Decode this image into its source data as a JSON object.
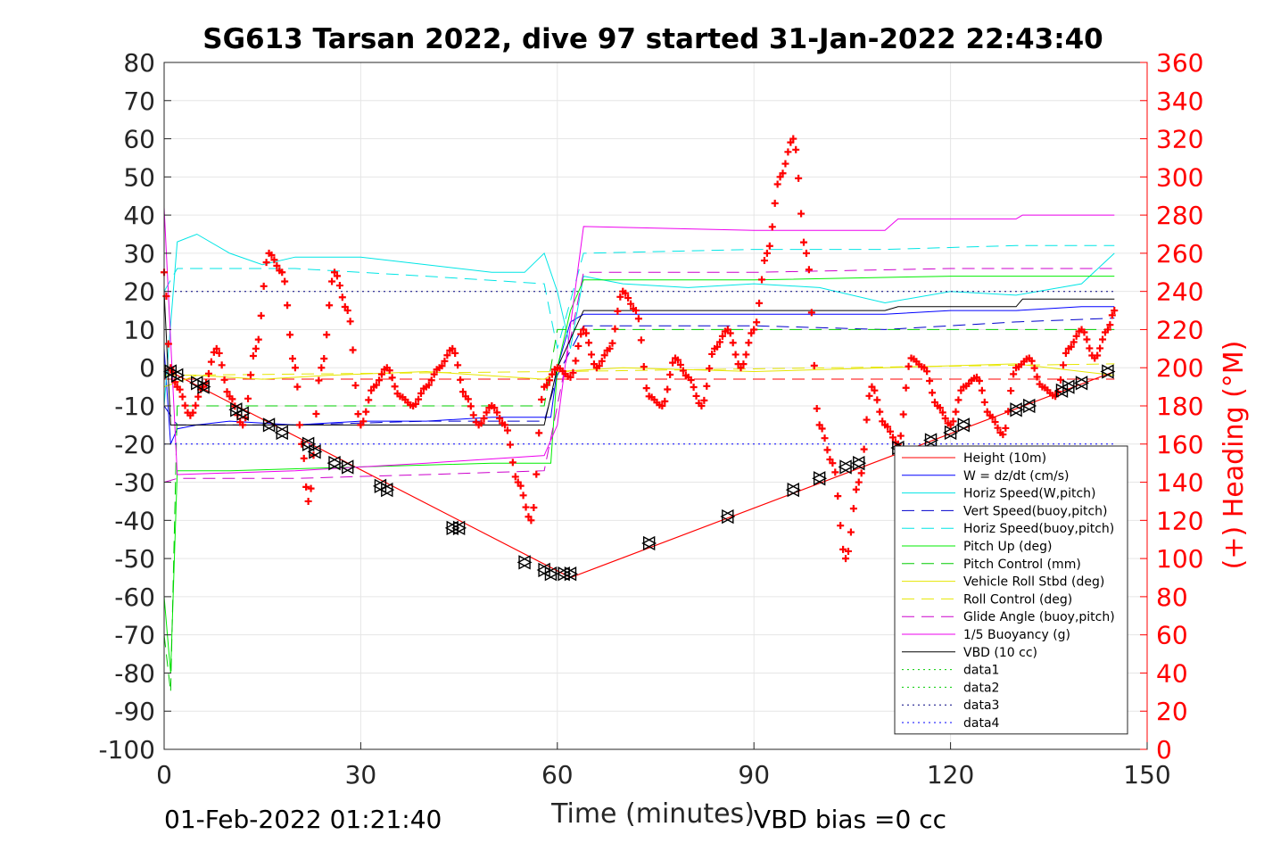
{
  "chart_data": {
    "type": "line",
    "title": "SG613 Tarsan 2022, dive 97 started 31-Jan-2022 22:43:40",
    "xlabel": "Time (minutes)",
    "ylabel": "",
    "y2label": "(+) Heading (°M)",
    "xlim": [
      0,
      150
    ],
    "ylim": [
      -100,
      80
    ],
    "y2lim": [
      0,
      360
    ],
    "x_ticks": [
      "0",
      "30",
      "60",
      "90",
      "120",
      "150"
    ],
    "y_ticks": [
      "80",
      "70",
      "60",
      "50",
      "40",
      "30",
      "20",
      "10",
      "0",
      "-10",
      "-20",
      "-30",
      "-40",
      "-50",
      "-60",
      "-70",
      "-80",
      "-90",
      "-100"
    ],
    "y2_ticks": [
      "360",
      "340",
      "320",
      "300",
      "280",
      "260",
      "240",
      "220",
      "200",
      "180",
      "160",
      "140",
      "120",
      "100",
      "80",
      "60",
      "40",
      "20",
      "0"
    ],
    "grid": true,
    "legend_position": "bottom-right",
    "footer_left": "01-Feb-2022 01:21:40",
    "footer_right": "VBD bias =0 cc",
    "series": [
      {
        "name": "Height (10m)",
        "color": "#ff0000",
        "style": "solid",
        "x": [
          0,
          2,
          62,
          145
        ],
        "y": [
          0,
          -2,
          -55,
          -1
        ]
      },
      {
        "name": "W = dz/dt (cm/s)",
        "color": "#0000ff",
        "style": "solid",
        "x": [
          0,
          1,
          2,
          5,
          10,
          20,
          30,
          40,
          50,
          59,
          60,
          62,
          64,
          70,
          80,
          90,
          100,
          110,
          120,
          130,
          140,
          145
        ],
        "y": [
          5,
          -20,
          -16,
          -15,
          -14,
          -15,
          -14,
          -14,
          -13,
          -13,
          0,
          12,
          14,
          14,
          14,
          14,
          14,
          14,
          15,
          15,
          16,
          16
        ]
      },
      {
        "name": "Horiz Speed(W,pitch)",
        "color": "#00e5e5",
        "style": "solid",
        "x": [
          0,
          2,
          5,
          10,
          15,
          20,
          30,
          40,
          50,
          55,
          58,
          60,
          62,
          64,
          70,
          80,
          90,
          100,
          110,
          120,
          130,
          140,
          145
        ],
        "y": [
          -10,
          33,
          35,
          30,
          27,
          29,
          29,
          27,
          25,
          25,
          30,
          20,
          5,
          24,
          22,
          21,
          22,
          21,
          17,
          20,
          19,
          22,
          30
        ]
      },
      {
        "name": "Vert Speed(buoy,pitch)",
        "color": "#0000cc",
        "style": "dashed",
        "x": [
          0,
          2,
          20,
          40,
          58,
          60,
          64,
          90,
          110,
          130,
          145
        ],
        "y": [
          -10,
          -15,
          -15,
          -14,
          -14,
          -2,
          11,
          11,
          10,
          12,
          13
        ]
      },
      {
        "name": "Horiz Speed(buoy,pitch)",
        "color": "#00e5e5",
        "style": "dashed",
        "x": [
          0,
          2,
          20,
          40,
          58,
          60,
          64,
          90,
          110,
          130,
          145
        ],
        "y": [
          20,
          26,
          26,
          24,
          22,
          5,
          30,
          31,
          31,
          32,
          32
        ]
      },
      {
        "name": "Pitch Up (deg)",
        "color": "#00ee00",
        "style": "solid",
        "x": [
          0,
          1,
          2,
          10,
          30,
          50,
          59,
          60,
          62,
          64,
          90,
          120,
          145
        ],
        "y": [
          -60,
          -80,
          -27,
          -27,
          -26,
          -25,
          -25,
          0,
          15,
          23,
          23,
          24,
          24
        ]
      },
      {
        "name": "Pitch Control (mm)",
        "color": "#00cc00",
        "style": "dashed",
        "x": [
          0,
          1,
          2,
          58,
          60,
          64,
          145
        ],
        "y": [
          -70,
          -85,
          -10,
          -10,
          10,
          10,
          10
        ]
      },
      {
        "name": "Vehicle Roll Stbd (deg)",
        "color": "#e6e600",
        "style": "solid",
        "x": [
          0,
          5,
          15,
          25,
          40,
          58,
          60,
          70,
          90,
          110,
          130,
          145
        ],
        "y": [
          -5,
          -2,
          -3,
          -2,
          -1,
          -3,
          -1,
          0,
          -1,
          0,
          1,
          -2
        ]
      },
      {
        "name": "Roll Control (deg)",
        "color": "#e6e600",
        "style": "dashed",
        "x": [
          0,
          60,
          145
        ],
        "y": [
          -2,
          -1,
          1
        ]
      },
      {
        "name": "Glide Angle (buoy,pitch)",
        "color": "#cc00cc",
        "style": "dashed",
        "x": [
          0,
          2,
          20,
          40,
          58,
          60,
          64,
          90,
          120,
          145
        ],
        "y": [
          -30,
          -29,
          -29,
          -28,
          -27,
          -10,
          25,
          25,
          26,
          26
        ]
      },
      {
        "name": "1/5 Buoyancy (g)",
        "color": "#ee00ee",
        "style": "solid",
        "x": [
          0,
          2,
          20,
          40,
          58,
          60,
          64,
          90,
          110,
          112,
          130,
          131,
          145
        ],
        "y": [
          42,
          -28,
          -27,
          -25,
          -23,
          -15,
          37,
          36,
          36,
          39,
          39,
          40,
          40
        ]
      },
      {
        "name": "VBD (10 cc)",
        "color": "#000000",
        "style": "solid",
        "x": [
          0,
          1,
          2,
          58,
          60,
          64,
          110,
          112,
          130,
          131,
          145
        ],
        "y": [
          20,
          -15,
          -15,
          -15,
          0,
          15,
          15,
          16,
          16,
          18,
          18
        ]
      },
      {
        "name": "data1",
        "color": "#00cc00",
        "style": "dotted",
        "x": [
          0,
          145
        ],
        "y": [
          -100,
          -100
        ]
      },
      {
        "name": "data2",
        "color": "#00cc00",
        "style": "dotted",
        "x": [
          0,
          145
        ],
        "y": [
          -100,
          -100
        ]
      },
      {
        "name": "data3",
        "color": "#000080",
        "style": "dotted",
        "x": [
          0,
          145
        ],
        "y": [
          20,
          20
        ]
      },
      {
        "name": "data4",
        "color": "#0000ff",
        "style": "dotted",
        "x": [
          0,
          145
        ],
        "y": [
          -20,
          -20
        ]
      }
    ],
    "red_line_dashed": {
      "color": "#ff0000",
      "x": [
        0,
        145
      ],
      "y": [
        -3,
        -3
      ]
    },
    "heading": {
      "name": "(+) Heading (°M)",
      "color": "#ff0000",
      "x": [
        0,
        1,
        2,
        4,
        6,
        8,
        10,
        12,
        14,
        16,
        18,
        20,
        21,
        22,
        24,
        26,
        28,
        30,
        32,
        34,
        36,
        38,
        40,
        42,
        44,
        46,
        48,
        50,
        52,
        54,
        56,
        58,
        60,
        62,
        64,
        66,
        68,
        70,
        72,
        74,
        76,
        78,
        80,
        82,
        84,
        86,
        88,
        90,
        92,
        94,
        96,
        98,
        100,
        102,
        104,
        106,
        108,
        110,
        112,
        114,
        116,
        118,
        120,
        122,
        124,
        126,
        128,
        130,
        132,
        134,
        136,
        138,
        140,
        142,
        144,
        145
      ],
      "y": [
        250,
        200,
        190,
        175,
        190,
        210,
        185,
        170,
        210,
        260,
        250,
        200,
        160,
        130,
        200,
        250,
        230,
        170,
        190,
        200,
        185,
        180,
        190,
        200,
        210,
        185,
        170,
        180,
        170,
        140,
        120,
        190,
        200,
        195,
        220,
        200,
        210,
        240,
        230,
        185,
        180,
        205,
        195,
        180,
        210,
        220,
        200,
        220,
        260,
        300,
        320,
        260,
        170,
        150,
        100,
        140,
        190,
        170,
        160,
        205,
        200,
        180,
        170,
        190,
        195,
        175,
        165,
        200,
        205,
        190,
        185,
        210,
        220,
        205,
        220,
        230
      ]
    },
    "markers": {
      "symbol": "triangles",
      "color": "#000000",
      "x": [
        1,
        2,
        5,
        6,
        11,
        12,
        16,
        18,
        22,
        23,
        26,
        28,
        33,
        34,
        44,
        45,
        55,
        58,
        59,
        61,
        62,
        74,
        86,
        96,
        100,
        104,
        106,
        112,
        117,
        120,
        122,
        130,
        132,
        137,
        138,
        140,
        144
      ],
      "y": [
        -1,
        -2,
        -4,
        -5,
        -11,
        -12,
        -15,
        -17,
        -20,
        -22,
        -25,
        -26,
        -31,
        -32,
        -42,
        -42,
        -51,
        -53,
        -54,
        -54,
        -54,
        -46,
        -39,
        -32,
        -29,
        -26,
        -25,
        -21,
        -19,
        -17,
        -15,
        -11,
        -10,
        -6,
        -5,
        -4,
        -1
      ]
    }
  }
}
